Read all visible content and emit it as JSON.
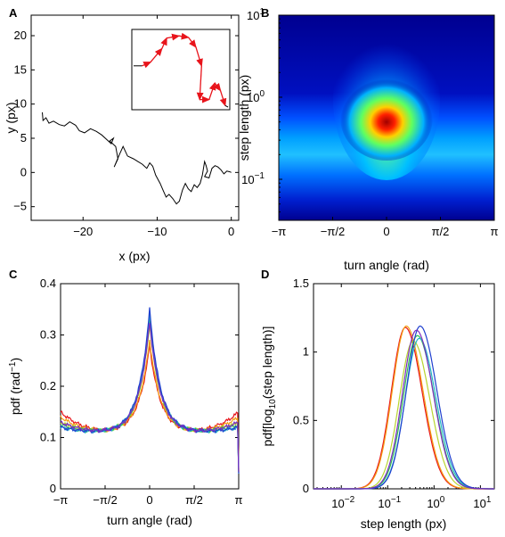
{
  "chart_data": [
    {
      "panel": "A",
      "type": "line",
      "xlabel": "x (px)",
      "ylabel": "y (px)",
      "xlim": [
        -27,
        1
      ],
      "ylim": [
        -7,
        23
      ],
      "xticks": [
        -20,
        -10,
        0
      ],
      "yticks": [
        -5,
        0,
        5,
        10,
        15,
        20
      ],
      "xtick_labels": [
        "−20",
        "−10",
        "0"
      ],
      "ytick_labels": [
        "−5",
        "0",
        "5",
        "10",
        "15",
        "20"
      ],
      "series": [
        {
          "color": "#000000",
          "x": [
            -25.5,
            -25.4,
            -25,
            -24.6,
            -24,
            -23.2,
            -22.5,
            -21.8,
            -21,
            -20.5,
            -19.8,
            -19,
            -18.2,
            -17.5,
            -16.8,
            -16.2,
            -15.9,
            -16.4,
            -15.6,
            -15.3,
            -15.8,
            -15.1,
            -14.6,
            -14,
            -13.2,
            -12.6,
            -12,
            -11.4,
            -11,
            -10.6,
            -10.2,
            -9.6,
            -9.2,
            -8.8,
            -8.4,
            -7.9,
            -7.4,
            -7,
            -6.6,
            -6.2,
            -5.8,
            -5.4,
            -5,
            -4.6,
            -4.2,
            -3.9,
            -3.6,
            -3.4,
            -3.2,
            -3.6,
            -3.0,
            -2.6,
            -2.2,
            -1.8,
            -1.4,
            -1.0,
            -0.6,
            -0.2,
            0
          ],
          "y": [
            8.8,
            7.6,
            8.0,
            7.2,
            7.5,
            7.0,
            6.8,
            7.4,
            6.9,
            6.1,
            5.8,
            6.4,
            6.0,
            5.5,
            4.8,
            4.2,
            5.0,
            4.6,
            3.8,
            2.0,
            0.8,
            2.6,
            3.8,
            2.4,
            2.0,
            1.6,
            1.2,
            0.6,
            1.4,
            0.9,
            -0.4,
            -1.6,
            -2.6,
            -3.6,
            -3.2,
            -3.8,
            -4.6,
            -4.2,
            -2.6,
            -1.6,
            -2.4,
            -2.8,
            -1.8,
            -2.2,
            -1.6,
            -0.4,
            1.6,
            1.0,
            0.2,
            -0.6,
            -0.8,
            0.6,
            1.0,
            0.8,
            0.4,
            -0.2,
            0.2,
            0.1,
            0
          ]
        }
      ],
      "inset": {
        "x": [
          0,
          0.09,
          0.18,
          0.3,
          0.35,
          0.48,
          0.58,
          0.66,
          0.72,
          0.7,
          0.8,
          0.86,
          0.92,
          0.97,
          1.0
        ],
        "y": [
          0.55,
          0.55,
          0.6,
          0.78,
          0.92,
          0.95,
          0.93,
          0.8,
          0.55,
          0.1,
          0.1,
          0.32,
          0.22,
          0.02,
          0.0
        ],
        "arrow_color": "#e8141b"
      }
    },
    {
      "panel": "B",
      "type": "heatmap",
      "xlabel": "turn angle (rad)",
      "ylabel": "step length (px)",
      "xlim": [
        -3.1416,
        3.1416
      ],
      "ylim_log10": [
        -1.5,
        1
      ],
      "xtick_labels": [
        "−π",
        "−π/2",
        "0",
        "π/2",
        "π"
      ],
      "ytick_labels": [
        "10",
        "10",
        "10"
      ],
      "ytick_exponents": [
        "1",
        "0",
        "−1"
      ],
      "colormap": "jet",
      "peak": {
        "angle": 0,
        "step_length": 0.45
      }
    },
    {
      "panel": "C",
      "type": "line",
      "xlabel": "turn angle (rad)",
      "ylabel_main": "pdf (rad",
      "ylabel_sup": "−1",
      "ylabel_end": ")",
      "xlim": [
        -3.1416,
        3.1416
      ],
      "ylim": [
        0,
        0.4
      ],
      "xtick_labels": [
        "−π",
        "−π/2",
        "0",
        "π/2",
        "π"
      ],
      "ytick_labels": [
        "0",
        "0.1",
        "0.2",
        "0.3",
        "0.4"
      ],
      "yticks": [
        0,
        0.1,
        0.2,
        0.3,
        0.4
      ],
      "series": [
        {
          "color": "#e8141b",
          "peak": 0.28,
          "edge": 0.15
        },
        {
          "color": "#f39c12",
          "peak": 0.29,
          "edge": 0.14
        },
        {
          "color": "#b8d430",
          "peak": 0.32,
          "edge": 0.13
        },
        {
          "color": "#2fbf4f",
          "peak": 0.33,
          "edge": 0.125
        },
        {
          "color": "#22b5c9",
          "peak": 0.34,
          "edge": 0.12
        },
        {
          "color": "#1f3fcf",
          "peak": 0.35,
          "edge": 0.12
        },
        {
          "color": "#7b2cbf",
          "peak": 0.325,
          "edge": 0.13
        }
      ]
    },
    {
      "panel": "D",
      "type": "line",
      "xlabel": "step length (px)",
      "ylabel": "pdf[log",
      "ylabel_sub": "10",
      "ylabel_end": "(step length)]",
      "xlim_log10": [
        -2.6,
        1.3
      ],
      "ylim": [
        0,
        1.5
      ],
      "ytick_labels": [
        "0",
        "0.5",
        "1",
        "1.5"
      ],
      "yticks": [
        0,
        0.5,
        1,
        1.5
      ],
      "xtick_labels": [
        "10",
        "10",
        "10",
        "10"
      ],
      "xtick_exponents": [
        "−2",
        "−1",
        "0",
        "1"
      ],
      "series": [
        {
          "color": "#e8141b",
          "mu": -0.62,
          "peak": 1.18
        },
        {
          "color": "#f39c12",
          "mu": -0.6,
          "peak": 1.19
        },
        {
          "color": "#b8d430",
          "mu": -0.45,
          "peak": 1.08
        },
        {
          "color": "#2fbf4f",
          "mu": -0.36,
          "peak": 1.12
        },
        {
          "color": "#22b5c9",
          "mu": -0.32,
          "peak": 1.1
        },
        {
          "color": "#1f3fcf",
          "mu": -0.3,
          "peak": 1.19
        },
        {
          "color": "#7b2cbf",
          "mu": -0.38,
          "peak": 1.16
        }
      ]
    }
  ],
  "panel_labels": [
    "A",
    "B",
    "C",
    "D"
  ]
}
